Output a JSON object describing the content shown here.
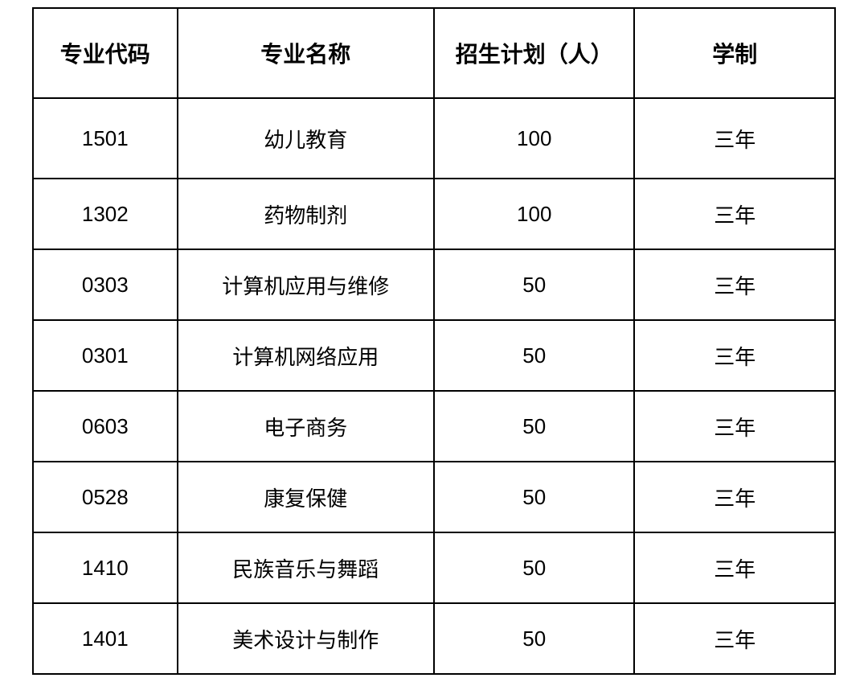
{
  "table": {
    "columns": [
      {
        "key": "code",
        "label": "专业代码"
      },
      {
        "key": "name",
        "label": "专业名称"
      },
      {
        "key": "plan",
        "label": "招生计划（人）"
      },
      {
        "key": "duration",
        "label": "学制"
      }
    ],
    "rows": [
      {
        "code": "1501",
        "name": "幼儿教育",
        "plan": "100",
        "duration": "三年"
      },
      {
        "code": "1302",
        "name": "药物制剂",
        "plan": "100",
        "duration": "三年"
      },
      {
        "code": "0303",
        "name": "计算机应用与维修",
        "plan": "50",
        "duration": "三年"
      },
      {
        "code": "0301",
        "name": "计算机网络应用",
        "plan": "50",
        "duration": "三年"
      },
      {
        "code": "0603",
        "name": "电子商务",
        "plan": "50",
        "duration": "三年"
      },
      {
        "code": "0528",
        "name": "康复保健",
        "plan": "50",
        "duration": "三年"
      },
      {
        "code": "1410",
        "name": "民族音乐与舞蹈",
        "plan": "50",
        "duration": "三年"
      },
      {
        "code": "1401",
        "name": "美术设计与制作",
        "plan": "50",
        "duration": "三年"
      }
    ],
    "styling": {
      "border_color": "#000000",
      "border_width": 2,
      "background_color": "#ffffff",
      "text_color": "#000000",
      "header_fontsize": 28,
      "cell_fontsize": 26,
      "header_fontweight": "bold",
      "col_widths_percent": [
        18,
        32,
        25,
        25
      ]
    }
  }
}
